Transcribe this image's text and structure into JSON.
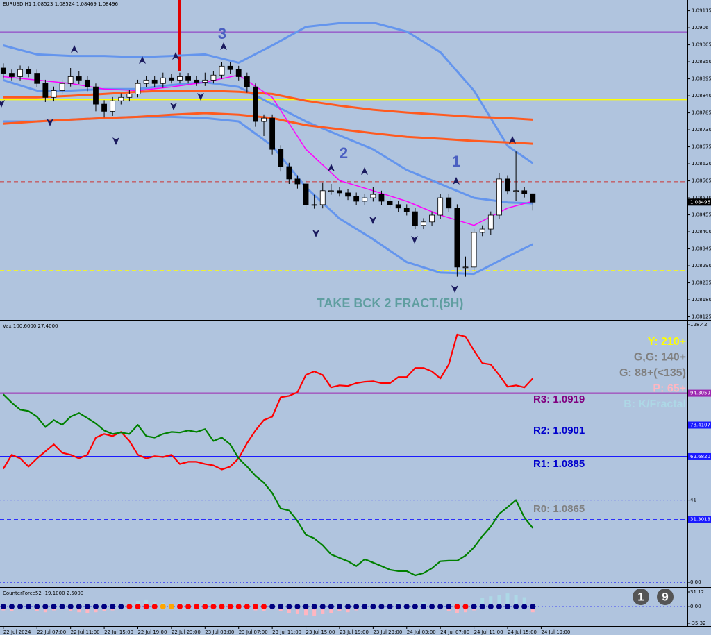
{
  "chart_data": [
    {
      "type": "candlestick",
      "title": "EURUSD,H1  1.08523 1.08524 1.08469 1.08496",
      "open": [
        1.0893,
        1.08913,
        1.08902,
        1.08925,
        1.08913,
        1.0888,
        1.08835,
        1.08857,
        1.0888,
        1.08902,
        1.08891,
        1.08869,
        1.08813,
        1.0879,
        1.08824,
        1.08835,
        1.08846,
        1.0888,
        1.08891,
        1.0888,
        1.08898,
        1.08891,
        1.08902,
        1.08891,
        1.08884,
        1.08891,
        1.08907,
        1.08936,
        1.08925,
        1.08902,
        1.08869,
        1.08757,
        1.08768,
        1.08667,
        1.08611,
        1.08571,
        1.08555,
        1.08488,
        1.08488,
        1.08533,
        1.08533,
        1.08526,
        1.08515,
        1.08499,
        1.0851,
        1.08521,
        1.08499,
        1.08488,
        1.08477,
        1.08465,
        1.08421,
        1.08432,
        1.08454,
        1.0851,
        1.08477,
        1.08286,
        1.08286,
        1.08398,
        1.08409,
        1.08454,
        1.08571,
        1.08533,
        1.08533,
        1.08523
      ],
      "high": [
        1.08945,
        1.08925,
        1.08938,
        1.08936,
        1.08925,
        1.08892,
        1.0887,
        1.08892,
        1.0893,
        1.0892,
        1.08903,
        1.0888,
        1.08826,
        1.08836,
        1.08848,
        1.08858,
        1.08892,
        1.08905,
        1.08903,
        1.08915,
        1.0891,
        1.08915,
        1.08914,
        1.08905,
        1.08915,
        1.0892,
        1.08948,
        1.08948,
        1.08937,
        1.08915,
        1.0888,
        1.0878,
        1.0878,
        1.0868,
        1.08623,
        1.08583,
        1.08567,
        1.0852,
        1.0856,
        1.08555,
        1.08545,
        1.08538,
        1.08527,
        1.08522,
        1.08545,
        1.08533,
        1.08511,
        1.085,
        1.08489,
        1.08477,
        1.08444,
        1.08466,
        1.08522,
        1.08522,
        1.08489,
        1.0832,
        1.0841,
        1.08421,
        1.08466,
        1.0859,
        1.08583,
        1.0866,
        1.08545,
        1.08524
      ],
      "low": [
        1.08895,
        1.0889,
        1.0889,
        1.089,
        1.08868,
        1.0882,
        1.08822,
        1.08845,
        1.0887,
        1.08878,
        1.08855,
        1.0879,
        1.0877,
        1.08775,
        1.08812,
        1.08822,
        1.08835,
        1.08868,
        1.08868,
        1.08866,
        1.0888,
        1.0888,
        1.0888,
        1.08872,
        1.08872,
        1.0888,
        1.08895,
        1.08912,
        1.0889,
        1.0885,
        1.0874,
        1.0871,
        1.0865,
        1.08595,
        1.08555,
        1.0854,
        1.0847,
        1.08475,
        1.08476,
        1.0852,
        1.08514,
        1.08503,
        1.08487,
        1.08487,
        1.08498,
        1.08487,
        1.08476,
        1.08465,
        1.08453,
        1.08409,
        1.08409,
        1.0842,
        1.08442,
        1.08465,
        1.08255,
        1.08255,
        1.08274,
        1.08386,
        1.0839,
        1.08442,
        1.08521,
        1.085,
        1.08511,
        1.08469
      ],
      "close": [
        1.08913,
        1.08902,
        1.08925,
        1.08913,
        1.0888,
        1.08835,
        1.08857,
        1.0888,
        1.08902,
        1.08891,
        1.08869,
        1.08813,
        1.0879,
        1.08824,
        1.08835,
        1.08846,
        1.0888,
        1.08891,
        1.0888,
        1.08898,
        1.08891,
        1.08902,
        1.08891,
        1.08884,
        1.08891,
        1.08907,
        1.08936,
        1.08925,
        1.08902,
        1.08869,
        1.08757,
        1.08768,
        1.08667,
        1.08611,
        1.08571,
        1.08555,
        1.08488,
        1.08488,
        1.08533,
        1.08533,
        1.08526,
        1.08515,
        1.08499,
        1.0851,
        1.08521,
        1.08499,
        1.08488,
        1.08477,
        1.08465,
        1.08421,
        1.08432,
        1.08454,
        1.0851,
        1.08477,
        1.08286,
        1.08286,
        1.08398,
        1.08409,
        1.08454,
        1.08571,
        1.08533,
        1.08533,
        1.08523,
        1.08496
      ],
      "up_color": "#ffffff",
      "down_color": "#000000",
      "overlays": [
        {
          "color": "#6495ed",
          "x": [
            0,
            4,
            8,
            12,
            16,
            20,
            24,
            28,
            32,
            36,
            40,
            44,
            48,
            52,
            56,
            60,
            63
          ],
          "values": [
            1.09003,
            1.08974,
            1.08969,
            1.08969,
            1.08965,
            1.08969,
            1.08974,
            1.08947,
            1.09003,
            1.09063,
            1.09075,
            1.09077,
            1.09048,
            1.08981,
            1.08857,
            1.08678,
            1.08622
          ]
        },
        {
          "color": "#6495ed",
          "x": [
            0,
            4,
            8,
            12,
            16,
            20,
            24,
            28,
            32,
            36,
            40,
            44,
            48,
            52,
            56,
            60,
            63
          ],
          "values": [
            1.08757,
            1.08757,
            1.08763,
            1.08768,
            1.08772,
            1.08772,
            1.08768,
            1.08757,
            1.08678,
            1.08544,
            1.08443,
            1.08376,
            1.08302,
            1.08268,
            1.08264,
            1.0832,
            1.0836
          ]
        },
        {
          "color": "#6495ed",
          "x": [
            0,
            4,
            8,
            12,
            16,
            20,
            24,
            28,
            32,
            36,
            40,
            44,
            48,
            52,
            56,
            60,
            63
          ],
          "values": [
            1.08891,
            1.08857,
            1.08857,
            1.08862,
            1.08862,
            1.08875,
            1.08884,
            1.08869,
            1.08813,
            1.08757,
            1.08712,
            1.08667,
            1.086,
            1.08555,
            1.0851,
            1.08495,
            1.08492
          ]
        },
        {
          "color": "#ff5a1f",
          "x": [
            0,
            4,
            8,
            12,
            16,
            20,
            24,
            28,
            32,
            36,
            40,
            44,
            48,
            52,
            56,
            60,
            63
          ],
          "values": [
            1.08835,
            1.08835,
            1.0884,
            1.08846,
            1.08853,
            1.08857,
            1.08857,
            1.08853,
            1.08846,
            1.08824,
            1.08808,
            1.08795,
            1.08786,
            1.08779,
            1.08772,
            1.08768,
            1.08763
          ]
        },
        {
          "color": "#ff5a1f",
          "x": [
            0,
            4,
            8,
            12,
            16,
            20,
            24,
            28,
            32,
            36,
            40,
            44,
            48,
            52,
            56,
            60,
            63
          ],
          "values": [
            1.0875,
            1.08757,
            1.08763,
            1.08768,
            1.08772,
            1.08779,
            1.08784,
            1.08779,
            1.08768,
            1.08745,
            1.08732,
            1.08719,
            1.08707,
            1.08701,
            1.08694,
            1.08689,
            1.08685
          ]
        },
        {
          "color": "#ff00ff",
          "x": [
            0,
            4,
            8,
            12,
            16,
            20,
            24,
            28,
            32,
            36,
            40,
            44,
            48,
            52,
            56,
            60,
            63
          ],
          "values": [
            1.08902,
            1.08891,
            1.0888,
            1.08862,
            1.08857,
            1.08869,
            1.08884,
            1.08907,
            1.08835,
            1.08667,
            1.08566,
            1.08533,
            1.08499,
            1.08454,
            1.08421,
            1.08477,
            1.08499
          ]
        }
      ],
      "hlines": [
        {
          "value": 1.09046,
          "color": "#9966cc",
          "style": "solid"
        },
        {
          "value": 1.08828,
          "color": "#ffff00",
          "style": "solid"
        },
        {
          "value": 1.08562,
          "color": "#cc3333",
          "style": "dashed"
        },
        {
          "value": 1.08275,
          "color": "#ffff00",
          "style": "dashed"
        }
      ],
      "vline": {
        "x": 21,
        "y": 1.0892,
        "color": "#e00000"
      },
      "annotations": [
        "3",
        "2",
        "1",
        "TAKE BCK 2 FRACT.(5H)"
      ],
      "annotation_colors": [
        "#4a5fc1",
        "#4a5fc1",
        "#4a5fc1",
        "#5f9ea0"
      ],
      "xlim": [
        -0.4,
        81.4
      ],
      "xticks": [
        {
          "value": 0,
          "label": "22 Jul 2024"
        },
        {
          "value": 4,
          "label": "22 Jul 07:00"
        },
        {
          "value": 8,
          "label": "22 Jul 11:00"
        },
        {
          "value": 12,
          "label": "22 Jul 15:00"
        },
        {
          "value": 16,
          "label": "22 Jul 19:00"
        },
        {
          "value": 20,
          "label": "22 Jul 23:00"
        },
        {
          "value": 24,
          "label": "23 Jul 03:00"
        },
        {
          "value": 28,
          "label": "23 Jul 07:00"
        },
        {
          "value": 32,
          "label": "23 Jul 11:00"
        },
        {
          "value": 36,
          "label": "23 Jul 15:00"
        },
        {
          "value": 40,
          "label": "23 Jul 19:00"
        },
        {
          "value": 44,
          "label": "23 Jul 23:00"
        },
        {
          "value": 48,
          "label": "24 Jul 03:00"
        },
        {
          "value": 52,
          "label": "24 Jul 07:00"
        },
        {
          "value": 56,
          "label": "24 Jul 11:00"
        },
        {
          "value": 60,
          "label": "24 Jul 15:00"
        },
        {
          "value": 64,
          "label": "24 Jul 19:00"
        }
      ],
      "ylim": [
        1.08115,
        1.0915
      ],
      "yticks": [
        1.09115,
        1.0906,
        1.09005,
        {
          "value": 1.0895,
          "label": "1.08950"
        },
        1.08895,
        {
          "value": 1.0884,
          "label": "1.08840"
        },
        1.08785,
        {
          "value": 1.0873,
          "label": "1.08730"
        },
        1.08675,
        {
          "value": 1.0862,
          "label": "1.08620"
        },
        1.08565,
        {
          "value": 1.0851,
          "label": "1.08510"
        },
        1.08455,
        {
          "value": 1.084,
          "label": "1.08400"
        },
        1.08345,
        {
          "value": 1.0829,
          "label": "1.08290"
        },
        1.08235,
        {
          "value": 1.0818,
          "label": "1.08180"
        },
        1.08125
      ]
    },
    {
      "type": "line",
      "title": "Vax 100.6000 27.4000",
      "series": [
        {
          "color": "#ff0000",
          "values": [
            56.6,
            63.6,
            61.8,
            57.7,
            61.8,
            65.3,
            68.8,
            64.6,
            63.6,
            61.8,
            63.6,
            72.2,
            74.0,
            72.9,
            75.0,
            70.5,
            63.6,
            61.8,
            62.9,
            62.5,
            63.6,
            59.0,
            60.1,
            60.1,
            59.0,
            58.3,
            56.3,
            57.7,
            61.8,
            69.4,
            75.7,
            80.9,
            82.6,
            92.3,
            93.0,
            94.8,
            103.4,
            105.2,
            103.4,
            97.2,
            98.2,
            97.9,
            99.3,
            100.0,
            100.3,
            99.3,
            99.3,
            102.4,
            102.4,
            106.9,
            106.9,
            105.2,
            101.7,
            108.6,
            123.6,
            122.5,
            115.6,
            109.3,
            108.6,
            103.4,
            97.5,
            98.2,
            97.2,
            101.7
          ]
        },
        {
          "color": "#008000",
          "values": [
            93.7,
            89.6,
            86.1,
            85.4,
            82.6,
            77.4,
            80.9,
            78.5,
            82.6,
            84.4,
            81.9,
            79.2,
            75.7,
            74.0,
            74.7,
            74.0,
            78.5,
            72.9,
            72.2,
            74.0,
            75.0,
            74.7,
            75.7,
            75.0,
            76.4,
            70.5,
            72.2,
            68.8,
            61.8,
            57.7,
            53.1,
            49.7,
            44.5,
            36.8,
            35.8,
            30.6,
            23.7,
            21.9,
            18.5,
            13.9,
            12.2,
            10.5,
            8.1,
            11.5,
            9.8,
            8.1,
            6.3,
            5.6,
            5.6,
            3.5,
            4.6,
            7.0,
            10.5,
            10.8,
            10.8,
            13.3,
            17.4,
            23.0,
            27.8,
            34.1,
            37.5,
            41.0,
            32.3,
            27.1
          ]
        }
      ],
      "hlines": [
        {
          "value": 94.3059,
          "color": "#9c27b0",
          "style": "solid"
        },
        {
          "value": 78.4107,
          "color": "#1a1aff",
          "style": "dashed"
        },
        {
          "value": 62.682,
          "color": "#1a1aff",
          "style": "solid"
        },
        {
          "value": 41,
          "color": "#1a1aff",
          "style": "dotted"
        },
        {
          "value": 31.3018,
          "color": "#1a1aff",
          "style": "dashed"
        },
        {
          "value": 0,
          "color": "#1a1aff",
          "style": "dotted"
        }
      ],
      "levels": [
        {
          "text": "R3: 1.0919",
          "color": "#800080"
        },
        {
          "text": "R2: 1.0901",
          "color": "#0000cd"
        },
        {
          "text": "R1: 1.0885",
          "color": "#0000cd"
        },
        {
          "text": "R0: 1.0865",
          "color": "#808080"
        }
      ],
      "notes": [
        {
          "text": "Y: 210+",
          "color": "#ffff00"
        },
        {
          "text": "G,G: 140+",
          "color": "#808080"
        },
        {
          "text": "G: 88+(<135)",
          "color": "#808080"
        },
        {
          "text": "P: 65+",
          "color": "#ffb6c1"
        },
        {
          "text": "B: K/Fractal",
          "color": "#add8e6"
        }
      ],
      "ylim": [
        -2.4,
        130.5
      ],
      "yticks": [
        128.42,
        94.3059,
        78.4107,
        {
          "value": 62.682,
          "label": "62.6820"
        },
        41,
        31.3018,
        {
          "value": 0,
          "label": "0.00"
        }
      ],
      "tick_box_colors": [
        "none",
        "#9c27b0",
        "#1a1aff",
        "#1a1aff",
        "none",
        "#1a1aff",
        "none"
      ]
    },
    {
      "type": "bar",
      "title": "CounterForce52 -19.1000 2.5000",
      "values": [
        -8,
        -10,
        -6,
        -5,
        -9,
        -12,
        -8,
        -6,
        -10,
        -12,
        -14,
        -12,
        -10,
        -8,
        -5,
        5,
        12,
        15,
        10,
        8,
        5,
        8,
        6,
        5,
        8,
        10,
        6,
        4,
        3,
        -4,
        -8,
        -10,
        -6,
        -10,
        -14,
        -16,
        -18,
        -20,
        -16,
        -14,
        -10,
        -12,
        -8,
        -6,
        -5,
        -4,
        5,
        8,
        6,
        4,
        10,
        -4,
        -6,
        -10,
        -14,
        -12,
        -8,
        18,
        22,
        25,
        28,
        24,
        20,
        -12
      ],
      "positive_color": "#add8e6",
      "negative_color": "#ffb6c1",
      "dot_colors": [
        "navy",
        "navy",
        "navy",
        "navy",
        "navy",
        "navy",
        "navy",
        "navy",
        "navy",
        "navy",
        "navy",
        "navy",
        "navy",
        "navy",
        "navy",
        "red",
        "red",
        "red",
        "red",
        "orange",
        "orange",
        "red",
        "red",
        "red",
        "red",
        "red",
        "red",
        "red",
        "red",
        "red",
        "red",
        "red",
        "navy",
        "navy",
        "navy",
        "navy",
        "navy",
        "navy",
        "navy",
        "navy",
        "navy",
        "navy",
        "navy",
        "navy",
        "navy",
        "navy",
        "navy",
        "navy",
        "navy",
        "navy",
        "navy",
        "navy",
        "navy",
        "navy",
        "red",
        "red",
        "navy",
        "navy",
        "navy",
        "navy",
        "navy",
        "navy",
        "navy",
        "navy"
      ],
      "badges": [
        "1",
        "9"
      ],
      "ylim": [
        -41.2,
        38.5
      ],
      "yticks": [
        31.12,
        {
          "value": 0,
          "label": "0.00"
        },
        -35.32
      ]
    }
  ]
}
